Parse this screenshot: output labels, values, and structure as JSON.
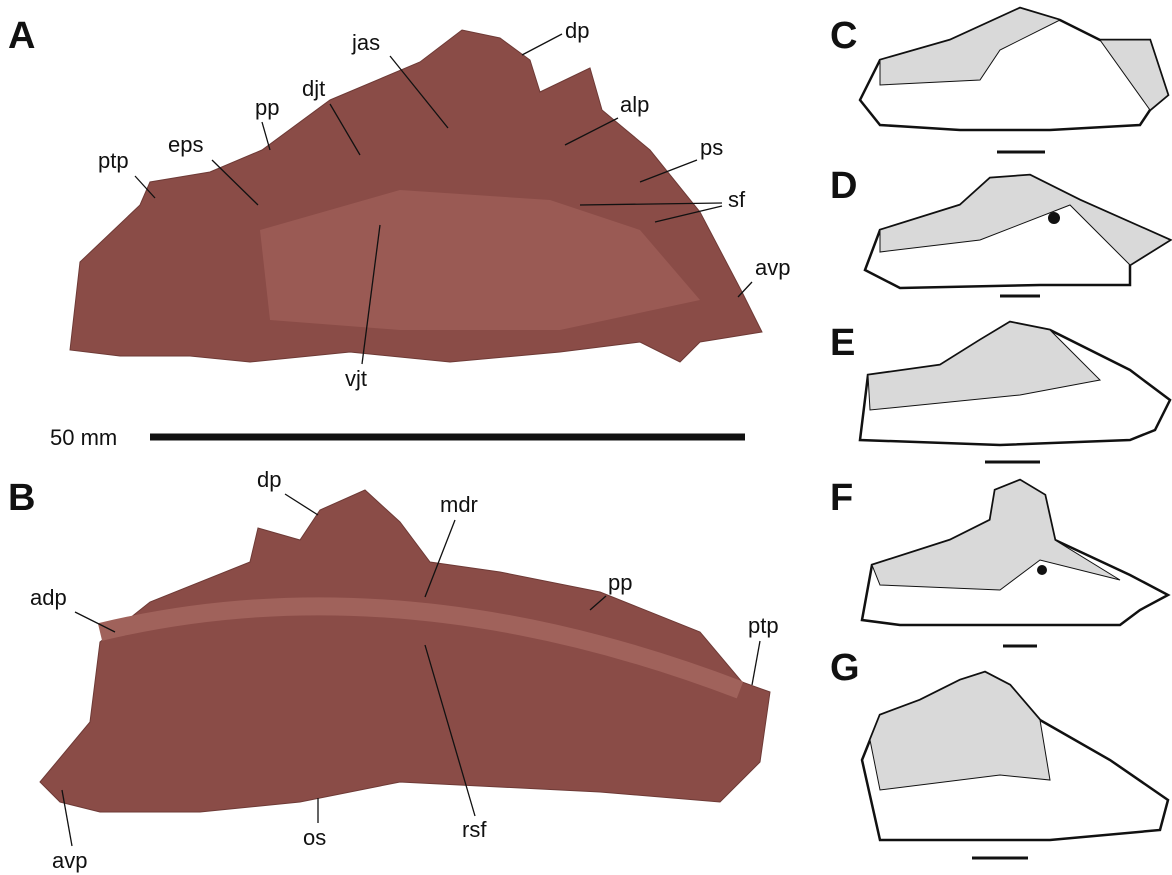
{
  "panels": {
    "A": {
      "letter": "A",
      "labels": [
        "dp",
        "jas",
        "djt",
        "pp",
        "eps",
        "ptp",
        "alp",
        "ps",
        "sf",
        "avp",
        "vjt"
      ],
      "scale_bar": "50 mm"
    },
    "B": {
      "letter": "B",
      "labels": [
        "dp",
        "mdr",
        "adp",
        "pp",
        "ptp",
        "avp",
        "os",
        "rsf"
      ]
    },
    "C": {
      "letter": "C"
    },
    "D": {
      "letter": "D"
    },
    "E": {
      "letter": "E"
    },
    "F": {
      "letter": "F"
    },
    "G": {
      "letter": "G"
    }
  }
}
